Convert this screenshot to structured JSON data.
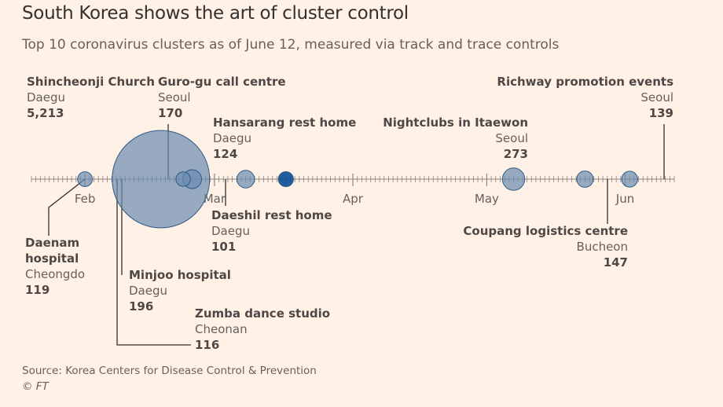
{
  "title": "South Korea shows the art of cluster control",
  "subtitle": "Top 10 coronavirus clusters as of June 12, measured via track and trace controls",
  "source": "Source: Korea Centers for Disease Control & Prevention",
  "credit": "© FT",
  "colors": {
    "background": "#FFF1E5",
    "bubble_fill": "#6C8BB0",
    "bubble_fill_dark": "#0F5499",
    "bubble_stroke": "#2E5C8A",
    "axis": "#8A8580",
    "text": "#33302E"
  },
  "chart_data": {
    "type": "scatter",
    "title": "South Korea shows the art of cluster control",
    "subtitle": "Top 10 coronavirus clusters as of June 12, measured via track and trace controls",
    "x_axis": {
      "type": "time",
      "range": [
        "2020-01-20",
        "2020-06-12"
      ],
      "tick_labels": [
        "Feb",
        "Mar",
        "Apr",
        "May",
        "Jun"
      ],
      "tick_dates": [
        "2020-02-01",
        "2020-03-01",
        "2020-04-01",
        "2020-05-01",
        "2020-06-01"
      ],
      "minor_ticks": "daily"
    },
    "size_encoding": "cases",
    "clusters": [
      {
        "name": "Shincheonji Church",
        "location": "Daegu",
        "cases": 5213,
        "cases_label": "5,213",
        "date": "2020-02-18",
        "label_side": "above"
      },
      {
        "name": "Daenam hospital",
        "location": "Cheongdo",
        "cases": 119,
        "cases_label": "119",
        "date": "2020-02-01",
        "label_side": "below"
      },
      {
        "name": "Minjoo hospital",
        "location": "Daegu",
        "cases": 196,
        "cases_label": "196",
        "date": "2020-02-25",
        "label_side": "below"
      },
      {
        "name": "Zumba dance studio",
        "location": "Cheonan",
        "cases": 116,
        "cases_label": "116",
        "date": "2020-02-23",
        "label_side": "below"
      },
      {
        "name": "Guro-gu call centre",
        "location": "Seoul",
        "cases": 170,
        "cases_label": "170",
        "date": "2020-03-08",
        "label_side": "above"
      },
      {
        "name": "Hansarang rest home",
        "location": "Daegu",
        "cases": 124,
        "cases_label": "124",
        "date": "2020-03-17",
        "label_side": "above"
      },
      {
        "name": "Daeshil rest home",
        "location": "Daegu",
        "cases": 101,
        "cases_label": "101",
        "date": "2020-03-17",
        "label_side": "below"
      },
      {
        "name": "Nightclubs in Itaewon",
        "location": "Seoul",
        "cases": 273,
        "cases_label": "273",
        "date": "2020-05-07",
        "label_side": "above"
      },
      {
        "name": "Coupang logistics centre",
        "location": "Bucheon",
        "cases": 147,
        "cases_label": "147",
        "date": "2020-05-23",
        "label_side": "below"
      },
      {
        "name": "Richway promotion events",
        "location": "Seoul",
        "cases": 139,
        "cases_label": "139",
        "date": "2020-06-02",
        "label_side": "above"
      }
    ]
  }
}
